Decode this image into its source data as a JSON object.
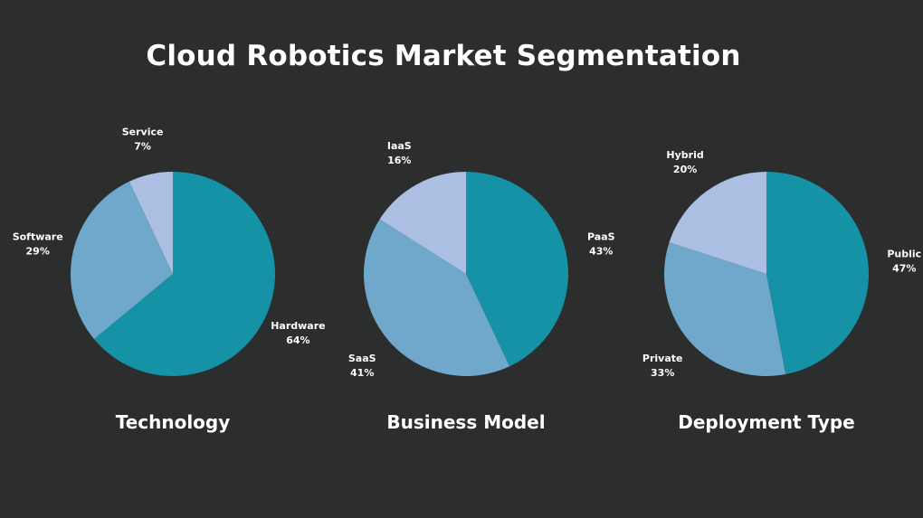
{
  "title": "Cloud Robotics Market Segmentation",
  "colors": {
    "background": "#2c2d2d",
    "slice_dark": "#1592a5",
    "slice_mid": "#6fa8cb",
    "slice_light": "#aabfe1"
  },
  "chart_data": [
    {
      "type": "pie",
      "title": "Technology",
      "slices": [
        {
          "label": "Hardware",
          "value": 64,
          "color": "#1592a5"
        },
        {
          "label": "Software",
          "value": 29,
          "color": "#6fa8cb"
        },
        {
          "label": "Service",
          "value": 7,
          "color": "#aabfe1"
        }
      ]
    },
    {
      "type": "pie",
      "title": "Business Model",
      "slices": [
        {
          "label": "PaaS",
          "value": 43,
          "color": "#1592a5"
        },
        {
          "label": "SaaS",
          "value": 41,
          "color": "#6fa8cb"
        },
        {
          "label": "IaaS",
          "value": 16,
          "color": "#aabfe1"
        }
      ]
    },
    {
      "type": "pie",
      "title": "Deployment Type",
      "slices": [
        {
          "label": "Public",
          "value": 47,
          "color": "#1592a5"
        },
        {
          "label": "Private",
          "value": 33,
          "color": "#6fa8cb"
        },
        {
          "label": "Hybrid",
          "value": 20,
          "color": "#aabfe1"
        }
      ]
    }
  ]
}
